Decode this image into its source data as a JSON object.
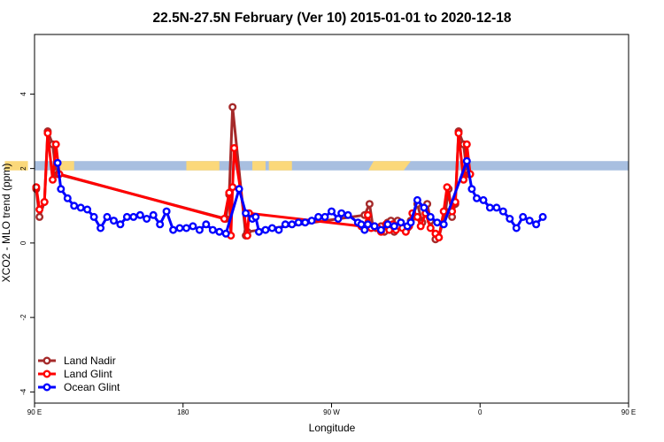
{
  "chart_data": {
    "type": "line",
    "title": "22.5N-27.5N February (Ver 10)   2015-01-01 to 2020-12-18",
    "xlabel": "Longitude",
    "ylabel": "XCO2 - MLO trend (ppm)",
    "xlim": [
      90,
      450
    ],
    "ylim": [
      -4.3,
      5.6
    ],
    "x_ticks": [
      {
        "value": 90,
        "label": "90 E"
      },
      {
        "value": 180,
        "label": "180"
      },
      {
        "value": 270,
        "label": "90 W"
      },
      {
        "value": 360,
        "label": "0"
      },
      {
        "value": 450,
        "label": "90 E"
      },
      {
        "value": 540,
        "label": "180"
      }
    ],
    "y_ticks": [
      {
        "value": -4,
        "label": "-4"
      },
      {
        "value": -2,
        "label": "-2"
      },
      {
        "value": 0,
        "label": "0"
      },
      {
        "value": 2,
        "label": "2"
      },
      {
        "value": 4,
        "label": "4"
      }
    ],
    "grid": false,
    "legend_position": "bottom-left",
    "band": {
      "y_min": 1.95,
      "y_max": 2.2,
      "ocean_color": "#a8bfe0",
      "land_color": "#fbd87a"
    },
    "series": [
      {
        "name": "Land Nadir",
        "color": "#a52a2a",
        "points": [
          [
            91,
            1.45
          ],
          [
            93,
            0.7
          ],
          [
            96,
            1.1
          ],
          [
            98,
            3.0
          ],
          [
            101,
            2.65
          ],
          [
            103,
            1.9
          ],
          [
            104,
            1.85
          ],
          [
            206,
            0.65
          ],
          [
            208,
            1.3
          ],
          [
            210,
            3.65
          ],
          [
            218,
            0.2
          ],
          [
            219,
            0.3
          ],
          [
            290,
            0.75
          ],
          [
            293,
            1.05
          ],
          [
            295,
            0.45
          ],
          [
            297,
            0.4
          ],
          [
            300,
            0.45
          ],
          [
            302,
            0.3
          ],
          [
            304,
            0.55
          ],
          [
            306,
            0.6
          ],
          [
            308,
            0.3
          ],
          [
            310,
            0.6
          ],
          [
            312,
            0.55
          ],
          [
            316,
            0.4
          ],
          [
            318,
            0.6
          ],
          [
            322,
            1.05
          ],
          [
            325,
            0.55
          ],
          [
            328,
            1.05
          ],
          [
            330,
            0.6
          ],
          [
            333,
            0.1
          ],
          [
            335,
            0.15
          ],
          [
            339,
            0.85
          ],
          [
            341,
            1.45
          ],
          [
            343,
            0.7
          ],
          [
            345,
            1.05
          ],
          [
            347,
            3.0
          ],
          [
            350,
            2.65
          ],
          [
            352,
            1.9
          ],
          [
            353,
            1.85
          ]
        ]
      },
      {
        "name": "Land Glint",
        "color": "#ff0000",
        "points": [
          [
            91,
            1.5
          ],
          [
            93,
            0.9
          ],
          [
            96,
            1.1
          ],
          [
            98,
            2.95
          ],
          [
            101,
            1.7
          ],
          [
            103,
            2.65
          ],
          [
            105,
            1.85
          ],
          [
            205,
            0.65
          ],
          [
            208,
            1.35
          ],
          [
            209,
            0.2
          ],
          [
            210,
            1.5
          ],
          [
            211,
            2.55
          ],
          [
            219,
            0.2
          ],
          [
            220,
            0.8
          ],
          [
            288,
            0.45
          ],
          [
            290,
            0.45
          ],
          [
            292,
            0.75
          ],
          [
            294,
            0.4
          ],
          [
            296,
            0.45
          ],
          [
            298,
            0.4
          ],
          [
            300,
            0.3
          ],
          [
            303,
            0.5
          ],
          [
            305,
            0.35
          ],
          [
            307,
            0.5
          ],
          [
            309,
            0.35
          ],
          [
            311,
            0.45
          ],
          [
            313,
            0.4
          ],
          [
            315,
            0.3
          ],
          [
            317,
            0.45
          ],
          [
            319,
            0.8
          ],
          [
            322,
            0.7
          ],
          [
            324,
            0.45
          ],
          [
            327,
            0.8
          ],
          [
            330,
            0.4
          ],
          [
            333,
            0.25
          ],
          [
            335,
            0.15
          ],
          [
            338,
            0.85
          ],
          [
            340,
            1.5
          ],
          [
            343,
            0.85
          ],
          [
            345,
            1.1
          ],
          [
            347,
            2.95
          ],
          [
            350,
            1.7
          ],
          [
            352,
            2.65
          ],
          [
            354,
            1.85
          ]
        ]
      },
      {
        "name": "Ocean Glint",
        "color": "#0000ff",
        "points": [
          [
            104,
            2.15
          ],
          [
            106,
            1.45
          ],
          [
            110,
            1.2
          ],
          [
            114,
            1.0
          ],
          [
            118,
            0.95
          ],
          [
            122,
            0.9
          ],
          [
            126,
            0.7
          ],
          [
            130,
            0.4
          ],
          [
            134,
            0.7
          ],
          [
            138,
            0.6
          ],
          [
            142,
            0.5
          ],
          [
            146,
            0.7
          ],
          [
            150,
            0.7
          ],
          [
            154,
            0.75
          ],
          [
            158,
            0.65
          ],
          [
            162,
            0.75
          ],
          [
            166,
            0.5
          ],
          [
            170,
            0.85
          ],
          [
            174,
            0.35
          ],
          [
            178,
            0.4
          ],
          [
            182,
            0.4
          ],
          [
            186,
            0.45
          ],
          [
            190,
            0.35
          ],
          [
            194,
            0.5
          ],
          [
            198,
            0.35
          ],
          [
            202,
            0.3
          ],
          [
            206,
            0.25
          ],
          [
            214,
            1.45
          ],
          [
            218,
            0.8
          ],
          [
            222,
            0.65
          ],
          [
            224,
            0.7
          ],
          [
            226,
            0.3
          ],
          [
            230,
            0.35
          ],
          [
            234,
            0.4
          ],
          [
            238,
            0.35
          ],
          [
            242,
            0.5
          ],
          [
            246,
            0.5
          ],
          [
            250,
            0.55
          ],
          [
            254,
            0.55
          ],
          [
            258,
            0.6
          ],
          [
            262,
            0.7
          ],
          [
            266,
            0.7
          ],
          [
            270,
            0.85
          ],
          [
            274,
            0.65
          ],
          [
            276,
            0.8
          ],
          [
            280,
            0.75
          ],
          [
            286,
            0.55
          ],
          [
            288,
            0.5
          ],
          [
            290,
            0.35
          ],
          [
            292,
            0.5
          ],
          [
            296,
            0.45
          ],
          [
            300,
            0.35
          ],
          [
            304,
            0.5
          ],
          [
            308,
            0.45
          ],
          [
            312,
            0.55
          ],
          [
            316,
            0.45
          ],
          [
            318,
            0.55
          ],
          [
            322,
            1.15
          ],
          [
            326,
            0.95
          ],
          [
            330,
            0.7
          ],
          [
            334,
            0.55
          ],
          [
            338,
            0.5
          ],
          [
            352,
            2.2
          ],
          [
            355,
            1.45
          ],
          [
            358,
            1.2
          ],
          [
            362,
            1.15
          ],
          [
            366,
            0.95
          ],
          [
            370,
            0.95
          ],
          [
            374,
            0.85
          ],
          [
            378,
            0.65
          ],
          [
            382,
            0.4
          ],
          [
            386,
            0.7
          ],
          [
            390,
            0.6
          ],
          [
            394,
            0.5
          ],
          [
            398,
            0.7
          ]
        ]
      }
    ]
  }
}
